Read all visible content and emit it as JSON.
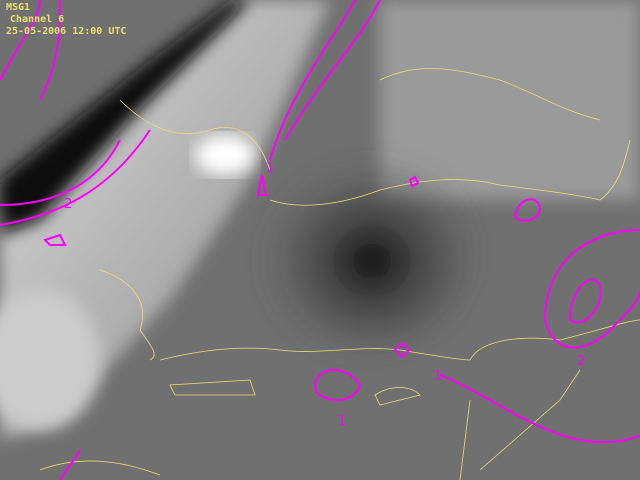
{
  "header": {
    "satellite": "MSG1",
    "channel": "Channel 6",
    "datetime": "25-05-2006 12:00 UTC"
  },
  "contour_labels": [
    "1",
    "2",
    "1",
    "1",
    "2"
  ],
  "colors": {
    "contours": "#ff00ff",
    "coastlines": "#e8e070"
  }
}
